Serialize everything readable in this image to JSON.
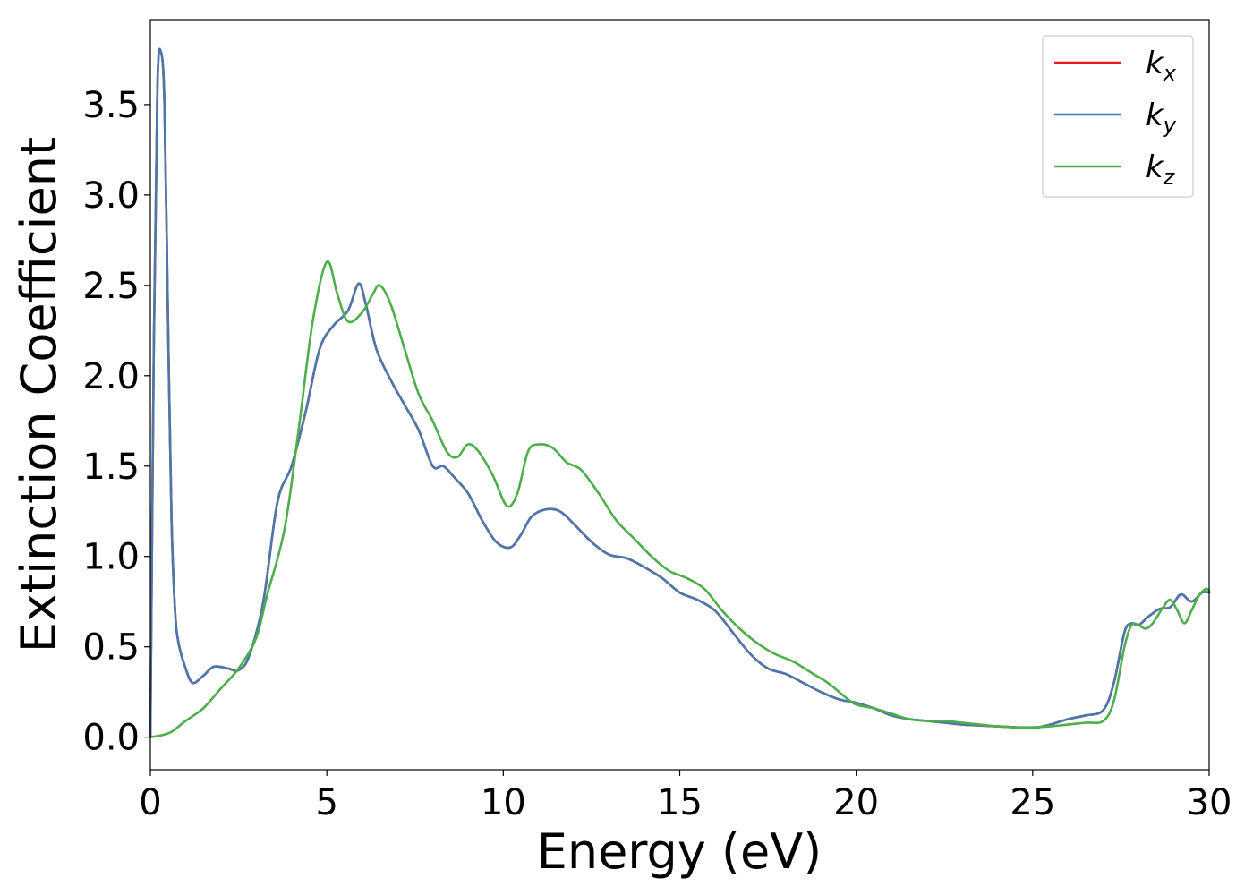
{
  "chart_data": {
    "type": "line",
    "title": "",
    "xlabel": "Energy (eV)",
    "ylabel": "Extinction Coefficient",
    "xlim": [
      0,
      30
    ],
    "ylim": [
      -0.18,
      3.97
    ],
    "xticks": [
      0,
      5,
      10,
      15,
      20,
      25,
      30
    ],
    "xtick_labels": [
      "0",
      "5",
      "10",
      "15",
      "20",
      "25",
      "30"
    ],
    "yticks": [
      0.0,
      0.5,
      1.0,
      1.5,
      2.0,
      2.5,
      3.0,
      3.5
    ],
    "ytick_labels": [
      "0.0",
      "0.5",
      "1.0",
      "1.5",
      "2.0",
      "2.5",
      "3.0",
      "3.5"
    ],
    "grid": false,
    "legend_position": "top-right",
    "series": [
      {
        "name": "k_x",
        "legend_base": "k",
        "legend_sub": "x",
        "color": "#e41a1c",
        "x": [
          0,
          0.1,
          0.2,
          0.3,
          0.4,
          0.5,
          0.6,
          0.7,
          0.8,
          1.0,
          1.2,
          1.5,
          1.8,
          2.2,
          2.5,
          2.8,
          3.2,
          3.6,
          4.0,
          4.4,
          4.8,
          5.2,
          5.6,
          5.9,
          6.1,
          6.4,
          6.8,
          7.2,
          7.6,
          8.0,
          8.3,
          8.6,
          9.0,
          9.4,
          9.8,
          10.2,
          10.5,
          10.8,
          11.2,
          11.6,
          12.0,
          12.5,
          13.0,
          13.5,
          14.0,
          14.5,
          15.0,
          15.5,
          16.0,
          16.5,
          17.0,
          17.5,
          18.0,
          18.5,
          19.0,
          19.5,
          20.0,
          20.5,
          21.0,
          21.5,
          22.0,
          22.5,
          23.0,
          23.5,
          24.0,
          24.5,
          25.0,
          25.5,
          26.0,
          26.5,
          27.0,
          27.3,
          27.6,
          27.8,
          28.0,
          28.3,
          28.6,
          28.9,
          29.2,
          29.5,
          29.8,
          30.0
        ],
        "y": [
          0.0,
          2.2,
          3.6,
          3.79,
          3.5,
          2.3,
          1.2,
          0.7,
          0.52,
          0.38,
          0.3,
          0.34,
          0.39,
          0.38,
          0.37,
          0.45,
          0.75,
          1.3,
          1.5,
          1.8,
          2.15,
          2.28,
          2.36,
          2.51,
          2.4,
          2.15,
          1.98,
          1.84,
          1.7,
          1.5,
          1.5,
          1.44,
          1.35,
          1.2,
          1.08,
          1.05,
          1.12,
          1.22,
          1.26,
          1.25,
          1.18,
          1.08,
          1.01,
          0.99,
          0.94,
          0.88,
          0.8,
          0.76,
          0.7,
          0.58,
          0.46,
          0.38,
          0.35,
          0.3,
          0.25,
          0.21,
          0.19,
          0.16,
          0.12,
          0.1,
          0.09,
          0.08,
          0.07,
          0.065,
          0.06,
          0.055,
          0.05,
          0.07,
          0.1,
          0.12,
          0.15,
          0.3,
          0.58,
          0.63,
          0.62,
          0.67,
          0.71,
          0.72,
          0.79,
          0.75,
          0.8,
          0.8
        ]
      },
      {
        "name": "k_y",
        "legend_base": "k",
        "legend_sub": "y",
        "color": "#4a78ad",
        "x": [
          0,
          0.1,
          0.2,
          0.3,
          0.4,
          0.5,
          0.6,
          0.7,
          0.8,
          1.0,
          1.2,
          1.5,
          1.8,
          2.2,
          2.5,
          2.8,
          3.2,
          3.6,
          4.0,
          4.4,
          4.8,
          5.2,
          5.6,
          5.9,
          6.1,
          6.4,
          6.8,
          7.2,
          7.6,
          8.0,
          8.3,
          8.6,
          9.0,
          9.4,
          9.8,
          10.2,
          10.5,
          10.8,
          11.2,
          11.6,
          12.0,
          12.5,
          13.0,
          13.5,
          14.0,
          14.5,
          15.0,
          15.5,
          16.0,
          16.5,
          17.0,
          17.5,
          18.0,
          18.5,
          19.0,
          19.5,
          20.0,
          20.5,
          21.0,
          21.5,
          22.0,
          22.5,
          23.0,
          23.5,
          24.0,
          24.5,
          25.0,
          25.5,
          26.0,
          26.5,
          27.0,
          27.3,
          27.6,
          27.8,
          28.0,
          28.3,
          28.6,
          28.9,
          29.2,
          29.5,
          29.8,
          30.0
        ],
        "y": [
          0.0,
          2.2,
          3.6,
          3.79,
          3.5,
          2.3,
          1.2,
          0.7,
          0.52,
          0.38,
          0.3,
          0.34,
          0.39,
          0.38,
          0.37,
          0.45,
          0.75,
          1.3,
          1.5,
          1.8,
          2.15,
          2.28,
          2.36,
          2.51,
          2.4,
          2.15,
          1.98,
          1.84,
          1.7,
          1.5,
          1.5,
          1.44,
          1.35,
          1.2,
          1.08,
          1.05,
          1.12,
          1.22,
          1.26,
          1.25,
          1.18,
          1.08,
          1.01,
          0.99,
          0.94,
          0.88,
          0.8,
          0.76,
          0.7,
          0.58,
          0.46,
          0.38,
          0.35,
          0.3,
          0.25,
          0.21,
          0.19,
          0.16,
          0.12,
          0.1,
          0.09,
          0.08,
          0.07,
          0.065,
          0.06,
          0.055,
          0.05,
          0.07,
          0.1,
          0.12,
          0.15,
          0.3,
          0.58,
          0.63,
          0.62,
          0.67,
          0.71,
          0.72,
          0.79,
          0.75,
          0.8,
          0.8
        ]
      },
      {
        "name": "k_z",
        "legend_base": "k",
        "legend_sub": "z",
        "color": "#4daf4a",
        "x": [
          0,
          0.3,
          0.6,
          1.0,
          1.5,
          2.0,
          2.5,
          3.0,
          3.3,
          3.8,
          4.2,
          4.6,
          5.0,
          5.3,
          5.6,
          6.0,
          6.3,
          6.5,
          6.8,
          7.2,
          7.6,
          8.0,
          8.4,
          8.7,
          9.0,
          9.3,
          9.7,
          10.1,
          10.4,
          10.7,
          11.0,
          11.4,
          11.8,
          12.2,
          12.7,
          13.2,
          13.7,
          14.2,
          14.7,
          15.2,
          15.7,
          16.2,
          16.7,
          17.2,
          17.7,
          18.2,
          18.7,
          19.2,
          19.7,
          20.0,
          20.5,
          21.0,
          21.5,
          22.0,
          22.5,
          23.0,
          23.5,
          24.0,
          24.5,
          25.0,
          25.5,
          26.0,
          26.5,
          27.0,
          27.3,
          27.6,
          27.8,
          28.0,
          28.2,
          28.4,
          28.7,
          28.9,
          29.1,
          29.3,
          29.5,
          29.7,
          29.9,
          30.0
        ],
        "y": [
          0.0,
          0.01,
          0.03,
          0.09,
          0.16,
          0.27,
          0.38,
          0.55,
          0.78,
          1.15,
          1.7,
          2.3,
          2.63,
          2.45,
          2.3,
          2.35,
          2.45,
          2.5,
          2.4,
          2.15,
          1.9,
          1.75,
          1.58,
          1.55,
          1.62,
          1.58,
          1.45,
          1.28,
          1.35,
          1.58,
          1.62,
          1.6,
          1.52,
          1.48,
          1.35,
          1.2,
          1.1,
          1.0,
          0.92,
          0.88,
          0.82,
          0.7,
          0.6,
          0.52,
          0.46,
          0.42,
          0.36,
          0.3,
          0.22,
          0.18,
          0.16,
          0.13,
          0.1,
          0.09,
          0.09,
          0.08,
          0.07,
          0.06,
          0.055,
          0.055,
          0.06,
          0.07,
          0.08,
          0.09,
          0.2,
          0.5,
          0.62,
          0.62,
          0.6,
          0.63,
          0.72,
          0.76,
          0.7,
          0.63,
          0.7,
          0.78,
          0.82,
          0.81
        ]
      }
    ]
  }
}
